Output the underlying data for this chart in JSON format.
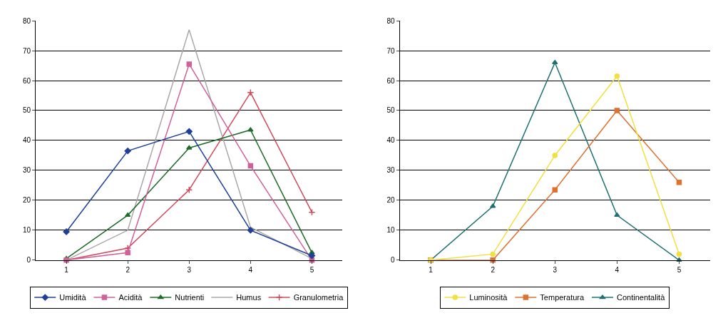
{
  "chart_data": [
    {
      "type": "line",
      "categories": [
        "1",
        "2",
        "3",
        "4",
        "5"
      ],
      "ylim": [
        0,
        80
      ],
      "yticks": [
        0,
        10,
        20,
        30,
        40,
        50,
        60,
        70,
        80
      ],
      "grid": "y",
      "legend": "bottom",
      "series": [
        {
          "name": "Umidità",
          "color": "#1f3f99",
          "marker": "diamond",
          "values": [
            9.5,
            36.5,
            43,
            10,
            1.5
          ]
        },
        {
          "name": "Acidità",
          "color": "#d0609a",
          "marker": "square",
          "values": [
            0,
            2.5,
            65.5,
            31.5,
            0
          ]
        },
        {
          "name": "Nutrienti",
          "color": "#1f6b2a",
          "marker": "triangle",
          "values": [
            0.5,
            15,
            37.5,
            43.5,
            2.5
          ]
        },
        {
          "name": "Humus",
          "color": "#a8a8a8",
          "marker": "none",
          "values": [
            0,
            10,
            77,
            11,
            0.5
          ]
        },
        {
          "name": "Granulometria",
          "color": "#d04a5a",
          "marker": "cross",
          "values": [
            0,
            4,
            23.5,
            56,
            16
          ]
        }
      ]
    },
    {
      "type": "line",
      "categories": [
        "1",
        "2",
        "3",
        "4",
        "5"
      ],
      "ylim": [
        0,
        80
      ],
      "yticks": [
        0,
        10,
        20,
        30,
        40,
        50,
        60,
        70,
        80
      ],
      "grid": "y",
      "legend": "bottom",
      "series": [
        {
          "name": "Luminosità",
          "color": "#f0e040",
          "marker": "circle",
          "values": [
            0,
            2,
            35,
            61.5,
            2
          ]
        },
        {
          "name": "Temperatura",
          "color": "#e07030",
          "marker": "square",
          "values": [
            0,
            0,
            23.5,
            50,
            26
          ]
        },
        {
          "name": "Continentalità",
          "color": "#1f7070",
          "marker": "triangle",
          "values": [
            0,
            18,
            66,
            15,
            0
          ]
        }
      ]
    }
  ]
}
